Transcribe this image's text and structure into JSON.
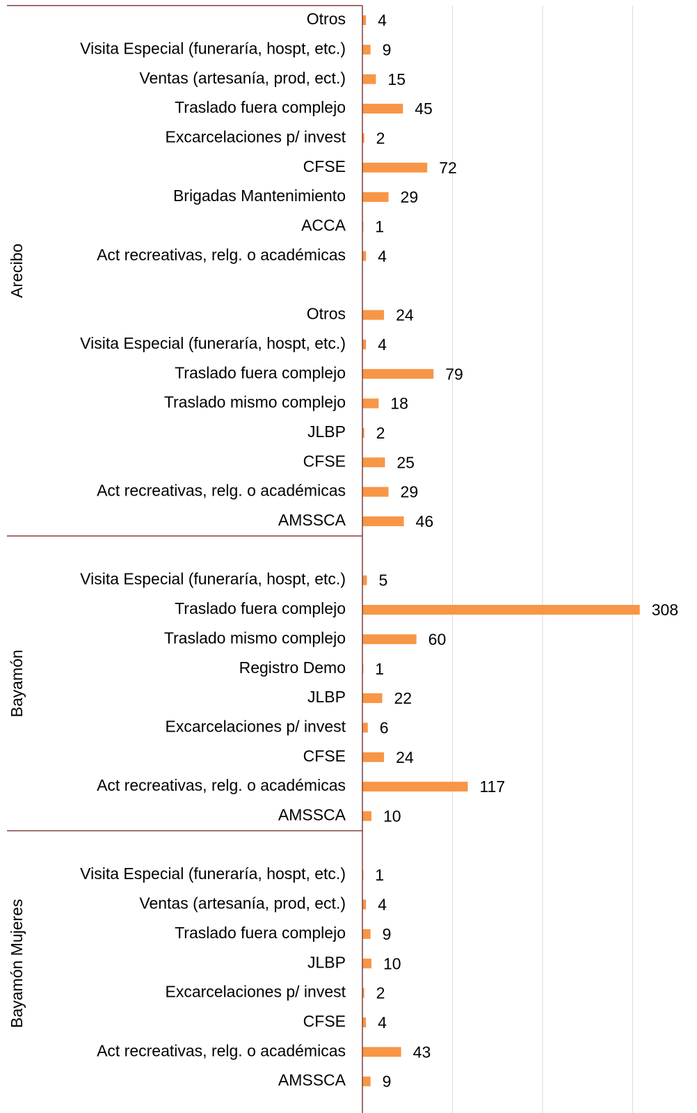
{
  "chart_data": {
    "type": "bar",
    "orientation": "horizontal",
    "color": "#f79646",
    "xlim": [
      0,
      370
    ],
    "xticks": [
      0,
      100,
      200,
      300
    ],
    "grid": true,
    "groups": [
      {
        "name": "Arecibo",
        "categories": [
          "Otros",
          "Visita Especial (funeraría, hospt, etc.)",
          "Ventas (artesanía, prod, ect.)",
          "Traslado fuera complejo",
          "Excarcelaciones p/ invest",
          "CFSE",
          "Brigadas Mantenimiento",
          "ACCA",
          "Act recreativas, relg. o académicas",
          null,
          "Otros",
          "Visita Especial (funeraría, hospt, etc.)",
          "Traslado fuera complejo",
          "Traslado mismo complejo",
          "JLBP",
          "CFSE",
          "Act recreativas, relg. o académicas",
          "AMSSCA"
        ],
        "values": [
          4,
          9,
          15,
          45,
          2,
          72,
          29,
          1,
          4,
          null,
          24,
          4,
          79,
          18,
          2,
          25,
          29,
          46
        ]
      },
      {
        "name": "Bayamón",
        "categories": [
          null,
          "Visita Especial (funeraría, hospt, etc.)",
          "Traslado fuera complejo",
          "Traslado mismo complejo",
          "Registro Demo",
          "JLBP",
          "Excarcelaciones p/ invest",
          "CFSE",
          "Act recreativas, relg. o académicas",
          "AMSSCA"
        ],
        "values": [
          null,
          5,
          308,
          60,
          1,
          22,
          6,
          24,
          117,
          10
        ]
      },
      {
        "name": "Bayamón Mujeres",
        "categories": [
          null,
          "Visita Especial (funeraría, hospt, etc.)",
          "Ventas (artesanía, prod, ect.)",
          "Traslado fuera complejo",
          "JLBP",
          "Excarcelaciones p/ invest",
          "CFSE",
          "Act recreativas, relg. o académicas",
          "AMSSCA"
        ],
        "values": [
          null,
          1,
          4,
          9,
          10,
          2,
          4,
          43,
          9
        ]
      }
    ]
  }
}
